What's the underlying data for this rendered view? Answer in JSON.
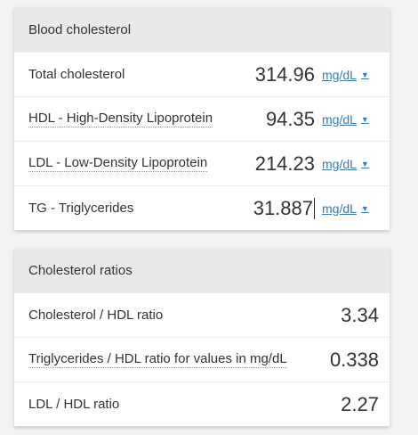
{
  "blood_cholesterol": {
    "title": "Blood cholesterol",
    "rows": [
      {
        "label": "Total cholesterol",
        "value": "314.96",
        "unit": "mg/dL"
      },
      {
        "label": "HDL - High-Density Lipoprotein",
        "value": "94.35",
        "unit": "mg/dL"
      },
      {
        "label": "LDL - Low-Density Lipoprotein",
        "value": "214.23",
        "unit": "mg/dL"
      },
      {
        "label": "TG - Triglycerides",
        "value": "31.887",
        "unit": "mg/dL"
      }
    ],
    "caret": "▼"
  },
  "cholesterol_ratios": {
    "title": "Cholesterol ratios",
    "rows": [
      {
        "label": "Cholesterol / HDL ratio",
        "value": "3.34"
      },
      {
        "label": "Triglycerides / HDL ratio for values in mg/dL",
        "value": "0.338"
      },
      {
        "label": "LDL / HDL ratio",
        "value": "2.27"
      }
    ]
  },
  "colors": {
    "header_bg": "#e9e9e9",
    "link": "#3a7ab8",
    "text": "#333333",
    "page_bg": "#f3f3f3"
  }
}
